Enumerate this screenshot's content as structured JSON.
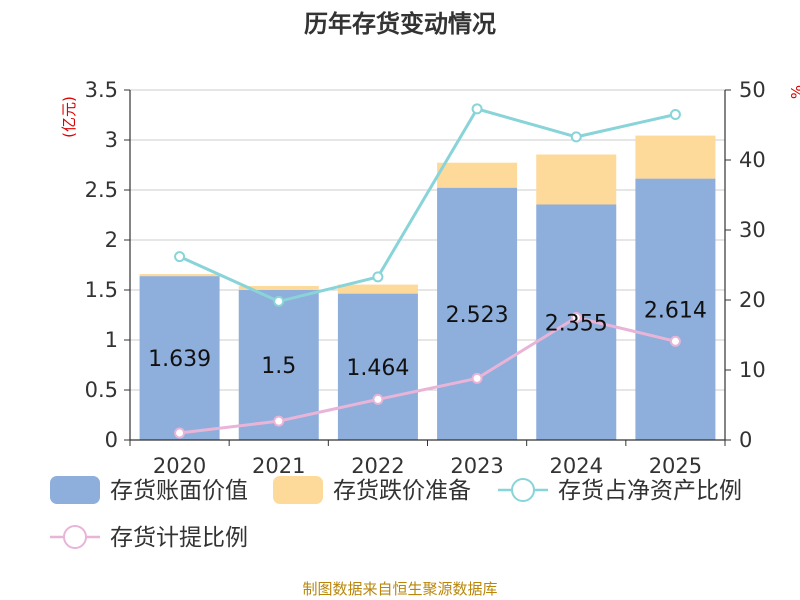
{
  "title": "历年存货变动情况",
  "footer": "制图数据来自恒生聚源数据库",
  "chart_data": {
    "type": "bar",
    "categories": [
      "2020",
      "2021",
      "2022",
      "2023",
      "2024",
      "2025"
    ],
    "left_axis": {
      "unit_label": "(亿元)",
      "ylim": [
        0,
        3.5
      ],
      "ticks": [
        "0",
        "0.5",
        "1",
        "1.5",
        "2",
        "2.5",
        "3",
        "3.5"
      ]
    },
    "right_axis": {
      "unit_label": "%",
      "ylim": [
        0,
        50
      ],
      "ticks": [
        "0",
        "10",
        "20",
        "30",
        "40",
        "50"
      ]
    },
    "grid": true,
    "legend_position": "bottom",
    "series": [
      {
        "name": "存货账面价值",
        "type": "bar",
        "stack": "inventory",
        "axis": "left",
        "color": "#8eaedb",
        "values": [
          1.639,
          1.5,
          1.464,
          2.523,
          2.355,
          2.614
        ],
        "labels": [
          "1.639",
          "1.5",
          "1.464",
          "2.523",
          "2.355",
          "2.614"
        ]
      },
      {
        "name": "存货跌价准备",
        "type": "bar",
        "stack": "inventory",
        "axis": "left",
        "color": "#fdd99a",
        "values": [
          0.02,
          0.04,
          0.09,
          0.25,
          0.5,
          0.43
        ]
      },
      {
        "name": "存货占净资产比例",
        "type": "line",
        "axis": "right",
        "color": "#88d4d8",
        "values": [
          26.2,
          19.8,
          23.3,
          47.3,
          43.3,
          46.5
        ]
      },
      {
        "name": "存货计提比例",
        "type": "line",
        "axis": "right",
        "color": "#e8b4d8",
        "values": [
          1.0,
          2.7,
          5.8,
          8.8,
          17.5,
          14.1
        ]
      }
    ]
  }
}
